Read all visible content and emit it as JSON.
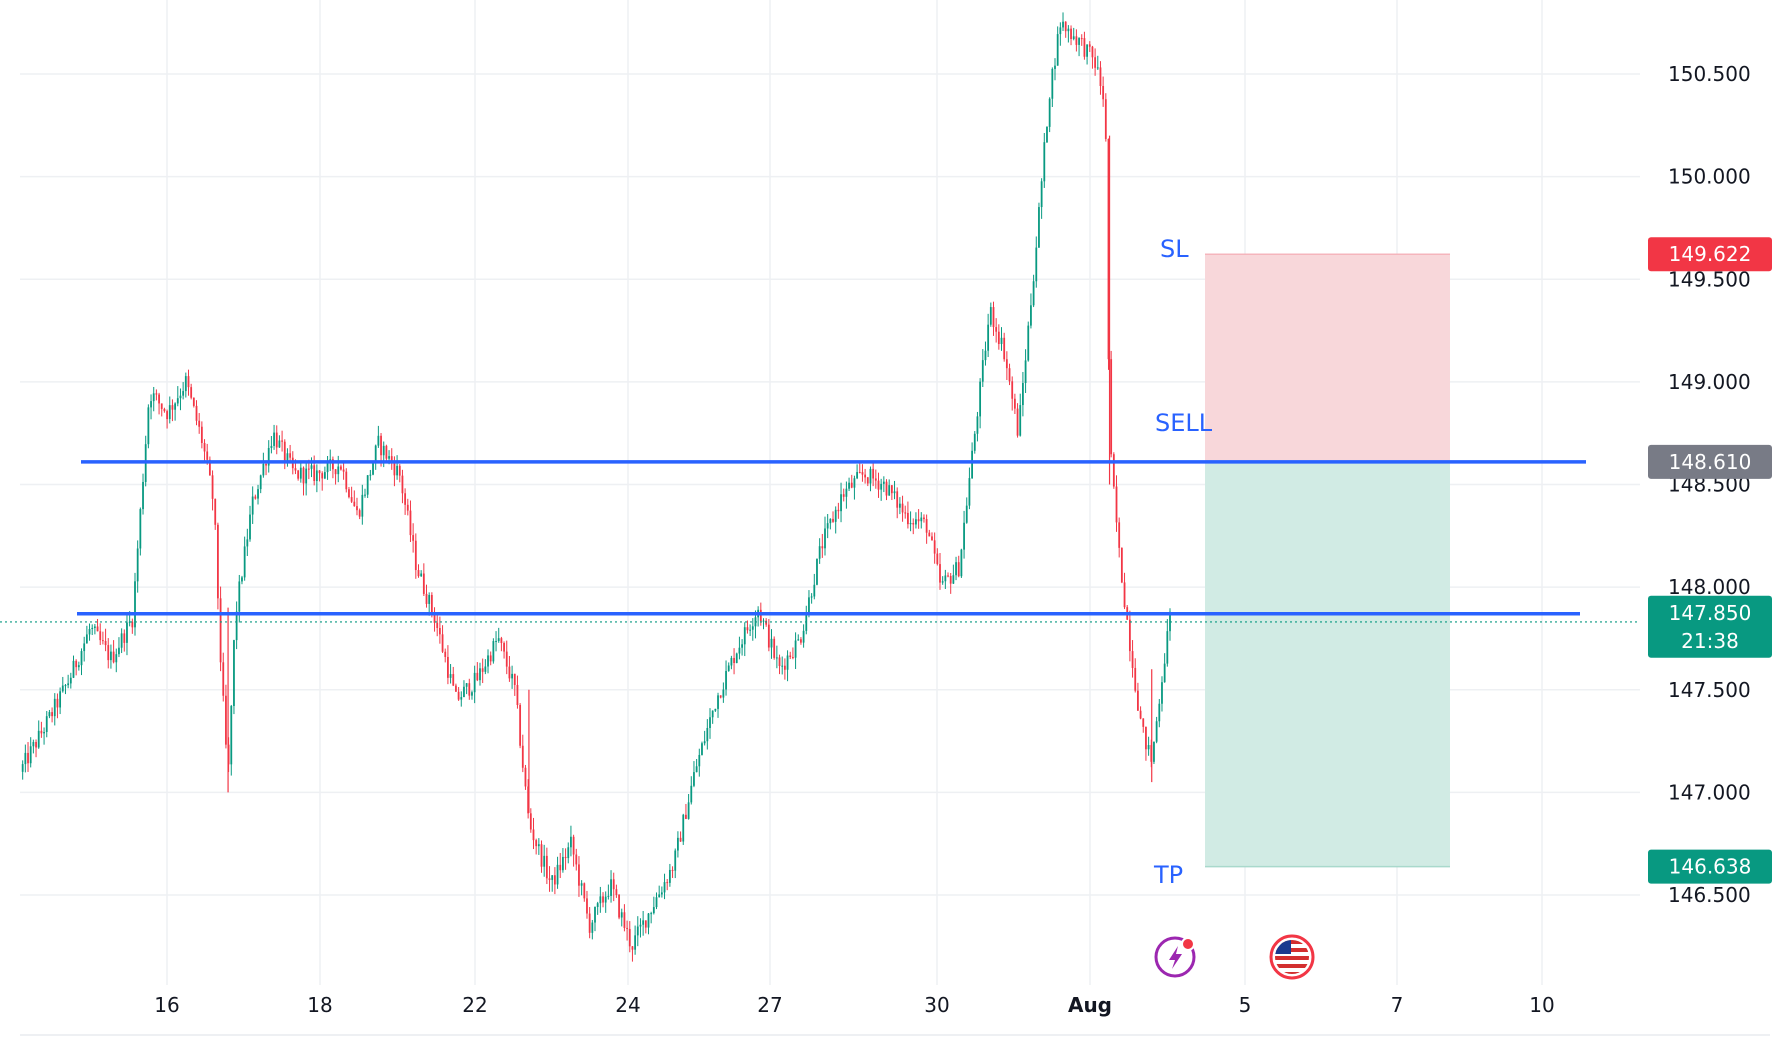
{
  "chart_data": {
    "type": "candlestick",
    "y_axis": {
      "ticks": [
        "146.500",
        "147.000",
        "147.500",
        "148.000",
        "148.500",
        "149.000",
        "149.500",
        "150.000",
        "150.500"
      ],
      "range": [
        146.0,
        150.85
      ]
    },
    "x_axis": {
      "ticks": [
        {
          "label": "16",
          "bold": false
        },
        {
          "label": "18",
          "bold": false
        },
        {
          "label": "22",
          "bold": false
        },
        {
          "label": "24",
          "bold": false
        },
        {
          "label": "27",
          "bold": false
        },
        {
          "label": "30",
          "bold": false
        },
        {
          "label": "Aug",
          "bold": true
        },
        {
          "label": "5",
          "bold": false
        },
        {
          "label": "7",
          "bold": false
        },
        {
          "label": "10",
          "bold": false
        }
      ]
    },
    "price_path": [
      [
        0.0,
        147.1
      ],
      [
        0.02,
        147.35
      ],
      [
        0.035,
        147.55
      ],
      [
        0.05,
        147.8
      ],
      [
        0.065,
        147.65
      ],
      [
        0.08,
        147.85
      ],
      [
        0.092,
        148.95
      ],
      [
        0.105,
        148.85
      ],
      [
        0.118,
        149.0
      ],
      [
        0.13,
        148.7
      ],
      [
        0.138,
        148.4
      ],
      [
        0.143,
        147.6
      ],
      [
        0.148,
        147.05
      ],
      [
        0.153,
        147.85
      ],
      [
        0.165,
        148.4
      ],
      [
        0.18,
        148.75
      ],
      [
        0.195,
        148.55
      ],
      [
        0.21,
        148.55
      ],
      [
        0.228,
        148.6
      ],
      [
        0.24,
        148.35
      ],
      [
        0.255,
        148.7
      ],
      [
        0.27,
        148.55
      ],
      [
        0.282,
        148.1
      ],
      [
        0.295,
        147.85
      ],
      [
        0.31,
        147.45
      ],
      [
        0.325,
        147.55
      ],
      [
        0.34,
        147.75
      ],
      [
        0.352,
        147.5
      ],
      [
        0.362,
        146.85
      ],
      [
        0.378,
        146.55
      ],
      [
        0.392,
        146.75
      ],
      [
        0.405,
        146.35
      ],
      [
        0.42,
        146.55
      ],
      [
        0.435,
        146.25
      ],
      [
        0.45,
        146.45
      ],
      [
        0.465,
        146.65
      ],
      [
        0.48,
        147.1
      ],
      [
        0.495,
        147.45
      ],
      [
        0.51,
        147.7
      ],
      [
        0.525,
        147.9
      ],
      [
        0.54,
        147.6
      ],
      [
        0.555,
        147.75
      ],
      [
        0.57,
        148.2
      ],
      [
        0.585,
        148.45
      ],
      [
        0.6,
        148.55
      ],
      [
        0.615,
        148.5
      ],
      [
        0.63,
        148.35
      ],
      [
        0.645,
        148.3
      ],
      [
        0.655,
        148.0
      ],
      [
        0.668,
        148.1
      ],
      [
        0.68,
        148.8
      ],
      [
        0.69,
        149.35
      ],
      [
        0.7,
        149.15
      ],
      [
        0.71,
        148.75
      ],
      [
        0.722,
        149.6
      ],
      [
        0.732,
        150.4
      ],
      [
        0.74,
        150.75
      ],
      [
        0.755,
        150.65
      ],
      [
        0.765,
        150.55
      ],
      [
        0.772,
        150.35
      ],
      [
        0.775,
        148.7
      ],
      [
        0.782,
        148.15
      ],
      [
        0.79,
        147.7
      ],
      [
        0.798,
        147.3
      ],
      [
        0.805,
        147.15
      ],
      [
        0.812,
        147.55
      ],
      [
        0.818,
        147.85
      ]
    ],
    "annotations": [
      {
        "label": "SL"
      },
      {
        "label": "SELL"
      },
      {
        "label": "TP"
      }
    ],
    "horizontal_lines": [
      {
        "price": 148.61,
        "color": "#2962ff"
      },
      {
        "price": 147.87,
        "color": "#2962ff"
      }
    ],
    "position": {
      "direction": "short",
      "entry": 148.61,
      "stop_loss": 149.622,
      "take_profit": 146.638,
      "risk_color": "#f8d7da",
      "reward_color": "#d1ebe4"
    },
    "price_badges": [
      {
        "value": "149.622",
        "color": "#f23645"
      },
      {
        "value": "148.610",
        "color": "#787b86"
      },
      {
        "value": "147.850",
        "sub": "21:38",
        "color": "#089981"
      },
      {
        "value": "146.638",
        "color": "#089981"
      }
    ],
    "current_price": 147.85,
    "colors": {
      "up": "#089981",
      "down": "#f23645",
      "grid": "#eef0f3",
      "line": "#2962ff"
    }
  },
  "event_icons": [
    {
      "name": "lightning-event-icon",
      "color": "#9c27b0"
    },
    {
      "name": "us-flag-icon",
      "color": "#f23645"
    }
  ]
}
